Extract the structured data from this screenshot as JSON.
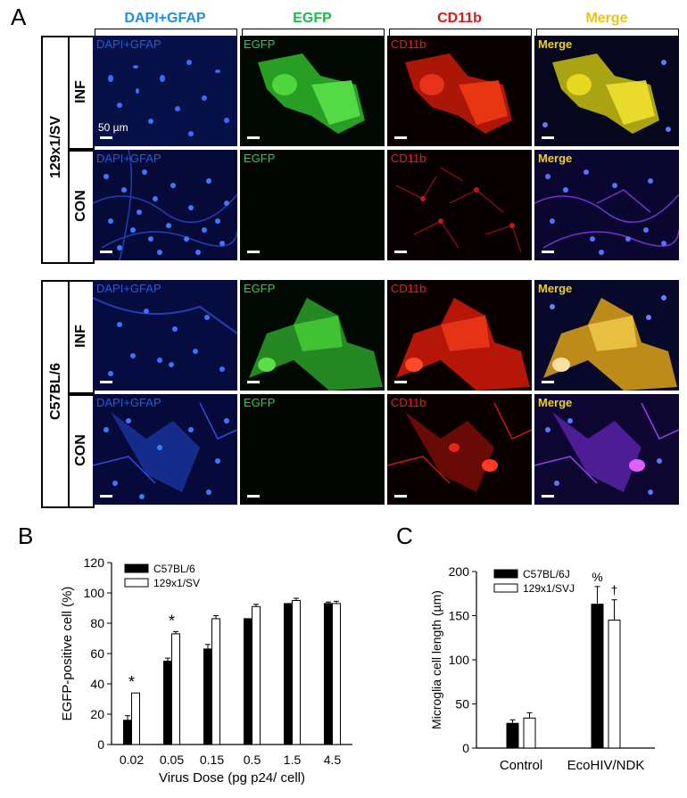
{
  "panel_a": {
    "letter": "A",
    "columns": [
      {
        "label": "DAPI+GFAP",
        "color": "#1f8fe0"
      },
      {
        "label": "EGFP",
        "color": "#1db84a"
      },
      {
        "label": "CD11b",
        "color": "#e01515"
      },
      {
        "label": "Merge",
        "color": "#e8c41a"
      }
    ],
    "strains": [
      "129x1/SV",
      "C57BL/6"
    ],
    "conditions": [
      "INF",
      "CON"
    ],
    "tile_labels": [
      "DAPI+GFAP",
      "EGFP",
      "CD11b",
      "Merge"
    ],
    "scale": "50 µm"
  },
  "panel_b": {
    "letter": "B",
    "chart_data": {
      "type": "bar",
      "categories": [
        "0.02",
        "0.05",
        "0.15",
        "0.5",
        "1.5",
        "4.5"
      ],
      "series": [
        {
          "name": "C57BL/6",
          "values": [
            16,
            55,
            63,
            83,
            93,
            93
          ],
          "errors": [
            3,
            2,
            3,
            0,
            0,
            1
          ]
        },
        {
          "name": "129x1/SV",
          "values": [
            34,
            73,
            83,
            91,
            95,
            93
          ],
          "errors": [
            0,
            1.5,
            2,
            1.5,
            1.5,
            1.5
          ]
        }
      ],
      "significance": [
        "*",
        "*",
        "",
        "",
        "",
        ""
      ],
      "xlabel": "Virus Dose (pg p24/ cell)",
      "ylabel": "EGFP-positive cell (%)",
      "ylim": [
        0,
        120
      ],
      "yticks": [
        "0",
        "20",
        "40",
        "60",
        "80",
        "100",
        "120"
      ]
    }
  },
  "panel_c": {
    "letter": "C",
    "chart_data": {
      "type": "bar",
      "categories": [
        "Control",
        "EcoHIV/NDK"
      ],
      "series": [
        {
          "name": "C57BL/6J",
          "values": [
            28,
            163
          ],
          "errors": [
            4,
            20
          ],
          "marks": [
            "",
            "%"
          ]
        },
        {
          "name": "129x1/SVJ",
          "values": [
            34,
            145
          ],
          "errors": [
            6,
            23
          ],
          "marks": [
            "",
            "†"
          ]
        }
      ],
      "ylabel": "Microglia cell length (µm)",
      "ylim": [
        0,
        200
      ],
      "yticks": [
        "0",
        "50",
        "100",
        "150",
        "200"
      ]
    }
  }
}
